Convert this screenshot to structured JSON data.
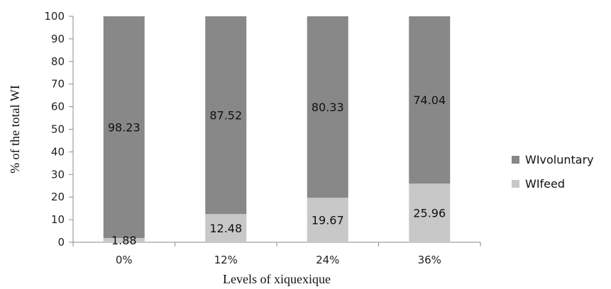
{
  "chart_data": {
    "type": "bar",
    "stacked": true,
    "percent_stacked": true,
    "categories": [
      "0%",
      "12%",
      "24%",
      "36%"
    ],
    "series": [
      {
        "name": "WIfeed",
        "values": [
          1.88,
          12.48,
          19.67,
          25.96
        ],
        "color": "#c8c8c8"
      },
      {
        "name": "WIvoluntary",
        "values": [
          98.23,
          87.52,
          80.33,
          74.04
        ],
        "color": "#888888"
      }
    ],
    "title": "",
    "xlabel": "Levels of xiquexique",
    "ylabel": "% of the total WI",
    "ylim": [
      0,
      100
    ],
    "yticks": [
      0,
      10,
      20,
      30,
      40,
      50,
      60,
      70,
      80,
      90,
      100
    ],
    "grid": false,
    "legend_position": "right",
    "legend_order": [
      "WIvoluntary",
      "WIfeed"
    ]
  }
}
